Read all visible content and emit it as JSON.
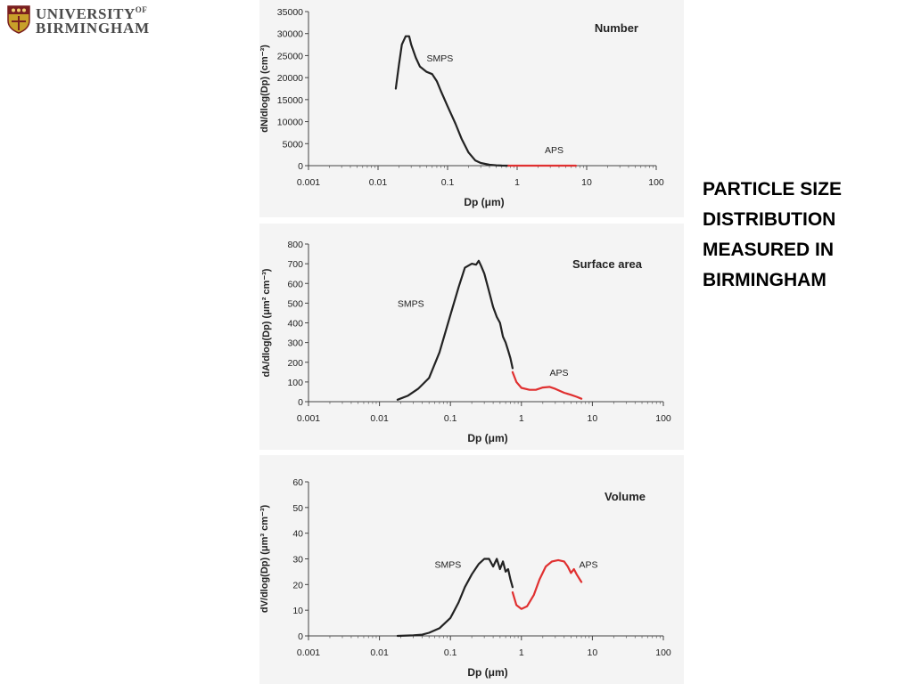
{
  "logo": {
    "line1": "UNIVERSITY",
    "of": "OF",
    "line2": "BIRMINGHAM"
  },
  "headline": [
    "PARTICLE SIZE",
    "DISTRIBUTION",
    "MEASURED IN",
    "BIRMINGHAM"
  ],
  "colors": {
    "smps": "#222222",
    "aps": "#e03030",
    "logo_text": "#4a4a4a",
    "panel_bg": "#f4f4f4"
  },
  "chart_data": [
    {
      "type": "line",
      "panel_label": "Number",
      "xlabel": "Dp (μm)",
      "ylabel": "dN/dlog(Dp) (cm⁻³)",
      "x_scale": "log",
      "xlim": [
        0.001,
        100
      ],
      "ylim": [
        0,
        35000
      ],
      "x_ticks": [
        0.001,
        0.01,
        0.1,
        1,
        10,
        100
      ],
      "x_tick_labels": [
        "0.001",
        "0.01",
        "0.1",
        "1",
        "10",
        "100"
      ],
      "y_ticks": [
        0,
        5000,
        10000,
        15000,
        20000,
        25000,
        30000,
        35000
      ],
      "grid": false,
      "series": [
        {
          "name": "SMPS",
          "x": [
            0.018,
            0.02,
            0.022,
            0.025,
            0.028,
            0.03,
            0.035,
            0.04,
            0.05,
            0.06,
            0.07,
            0.08,
            0.1,
            0.13,
            0.16,
            0.2,
            0.25,
            0.3,
            0.4,
            0.5,
            0.6,
            0.7,
            0.75
          ],
          "y": [
            17500,
            23000,
            27500,
            29400,
            29400,
            27500,
            24500,
            22500,
            21300,
            20800,
            19200,
            17000,
            13500,
            9500,
            6000,
            3000,
            1200,
            600,
            200,
            80,
            30,
            10,
            0
          ]
        },
        {
          "name": "APS",
          "x": [
            0.75,
            1,
            2,
            3,
            5,
            7
          ],
          "y": [
            0,
            0,
            0,
            0,
            0,
            0
          ]
        }
      ],
      "annotations": [
        {
          "text": "SMPS",
          "x": 0.05,
          "y": 24500
        },
        {
          "text": "APS",
          "x": 2.5,
          "y": 3600
        }
      ]
    },
    {
      "type": "line",
      "panel_label": "Surface area",
      "xlabel": "Dp (μm)",
      "ylabel": "dA/dlog(Dp) (μm² cm⁻³)",
      "x_scale": "log",
      "xlim": [
        0.001,
        100
      ],
      "ylim": [
        0,
        800
      ],
      "x_ticks": [
        0.001,
        0.01,
        0.1,
        1,
        10,
        100
      ],
      "x_tick_labels": [
        "0.001",
        "0.01",
        "0.1",
        "1",
        "10",
        "100"
      ],
      "y_ticks": [
        0,
        100,
        200,
        300,
        400,
        500,
        600,
        700,
        800
      ],
      "grid": false,
      "series": [
        {
          "name": "SMPS",
          "x": [
            0.018,
            0.025,
            0.035,
            0.05,
            0.07,
            0.1,
            0.13,
            0.16,
            0.2,
            0.23,
            0.25,
            0.27,
            0.3,
            0.35,
            0.4,
            0.45,
            0.5,
            0.55,
            0.6,
            0.65,
            0.7,
            0.75
          ],
          "y": [
            10,
            30,
            65,
            120,
            250,
            440,
            580,
            680,
            700,
            695,
            715,
            690,
            650,
            560,
            480,
            430,
            400,
            330,
            300,
            260,
            220,
            170
          ]
        },
        {
          "name": "APS",
          "x": [
            0.75,
            0.85,
            1,
            1.3,
            1.6,
            2,
            2.5,
            3,
            4,
            5,
            6,
            7
          ],
          "y": [
            150,
            100,
            70,
            60,
            60,
            72,
            75,
            65,
            45,
            35,
            25,
            15
          ]
        }
      ],
      "annotations": [
        {
          "text": "SMPS",
          "x": 0.018,
          "y": 500
        },
        {
          "text": "APS",
          "x": 2.5,
          "y": 150
        }
      ]
    },
    {
      "type": "line",
      "panel_label": "Volume",
      "xlabel": "Dp (μm)",
      "ylabel": "dV/dlog(Dp) (μm³ cm⁻³)",
      "x_scale": "log",
      "xlim": [
        0.001,
        100
      ],
      "ylim": [
        0,
        60
      ],
      "x_ticks": [
        0.001,
        0.01,
        0.1,
        1,
        10,
        100
      ],
      "x_tick_labels": [
        "0.001",
        "0.01",
        "0.1",
        "1",
        "10",
        "100"
      ],
      "y_ticks": [
        0,
        10,
        20,
        30,
        40,
        50,
        60
      ],
      "grid": false,
      "series": [
        {
          "name": "SMPS",
          "x": [
            0.018,
            0.03,
            0.04,
            0.05,
            0.07,
            0.1,
            0.13,
            0.16,
            0.2,
            0.25,
            0.3,
            0.35,
            0.4,
            0.45,
            0.5,
            0.55,
            0.6,
            0.65,
            0.7,
            0.75
          ],
          "y": [
            0,
            0.2,
            0.5,
            1.2,
            3,
            7,
            13,
            19,
            24,
            28,
            30,
            30,
            27,
            30,
            26,
            29,
            25,
            26,
            22,
            19
          ]
        },
        {
          "name": "APS",
          "x": [
            0.75,
            0.85,
            1,
            1.2,
            1.5,
            1.8,
            2.2,
            2.7,
            3.3,
            4,
            4.5,
            5,
            5.5,
            6,
            7
          ],
          "y": [
            17,
            12,
            10.5,
            11.5,
            16,
            22,
            27,
            29,
            29.5,
            29,
            27,
            24.5,
            26,
            24,
            21
          ]
        }
      ],
      "annotations": [
        {
          "text": "SMPS",
          "x": 0.06,
          "y": 28
        },
        {
          "text": "APS",
          "x": 6.5,
          "y": 28
        }
      ]
    }
  ]
}
